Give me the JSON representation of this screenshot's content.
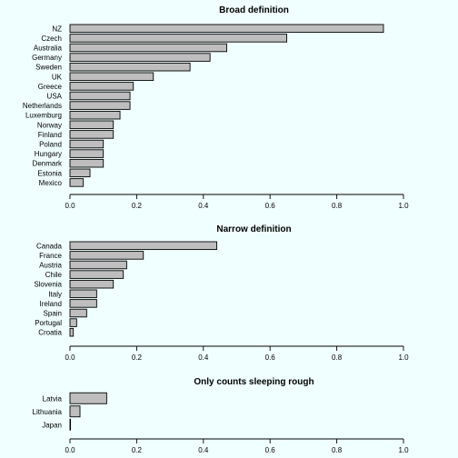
{
  "chart_data": [
    {
      "type": "bar",
      "orientation": "horizontal",
      "title": "Broad definition",
      "xlabel": "",
      "ylabel": "",
      "xlim": [
        0,
        1
      ],
      "x_ticks": [
        "0.0",
        "0.2",
        "0.4",
        "0.6",
        "0.8",
        "1.0"
      ],
      "categories": [
        "NZ",
        "Czech",
        "Australia",
        "Germany",
        "Sweden",
        "UK",
        "Greece",
        "USA",
        "Netherlands",
        "Luxemburg",
        "Norway",
        "Finland",
        "Poland",
        "Hungary",
        "Denmark",
        "Estonia",
        "Mexico"
      ],
      "values": [
        0.94,
        0.65,
        0.47,
        0.42,
        0.36,
        0.25,
        0.19,
        0.18,
        0.18,
        0.15,
        0.13,
        0.13,
        0.1,
        0.1,
        0.1,
        0.06,
        0.04
      ],
      "grid": false,
      "legend": "none"
    },
    {
      "type": "bar",
      "orientation": "horizontal",
      "title": "Narrow definition",
      "xlabel": "",
      "ylabel": "",
      "xlim": [
        0,
        1
      ],
      "x_ticks": [
        "0.0",
        "0.2",
        "0.4",
        "0.6",
        "0.8",
        "1.0"
      ],
      "categories": [
        "Canada",
        "France",
        "Austria",
        "Chile",
        "Slovenia",
        "Italy",
        "Ireland",
        "Spain",
        "Portugal",
        "Croatia"
      ],
      "values": [
        0.44,
        0.22,
        0.17,
        0.16,
        0.13,
        0.08,
        0.08,
        0.05,
        0.02,
        0.01
      ],
      "grid": false,
      "legend": "none"
    },
    {
      "type": "bar",
      "orientation": "horizontal",
      "title": "Only counts sleeping rough",
      "xlabel": "",
      "ylabel": "",
      "xlim": [
        0,
        1
      ],
      "x_ticks": [
        "0.0",
        "0.2",
        "0.4",
        "0.6",
        "0.8",
        "1.0"
      ],
      "categories": [
        "Latvia",
        "Lithuania",
        "Japan"
      ],
      "values": [
        0.11,
        0.03,
        0.0
      ],
      "grid": false,
      "legend": "none"
    }
  ],
  "colors": {
    "background": "#f0ffff",
    "bar_fill": "#bebebe",
    "bar_stroke": "#000000"
  }
}
